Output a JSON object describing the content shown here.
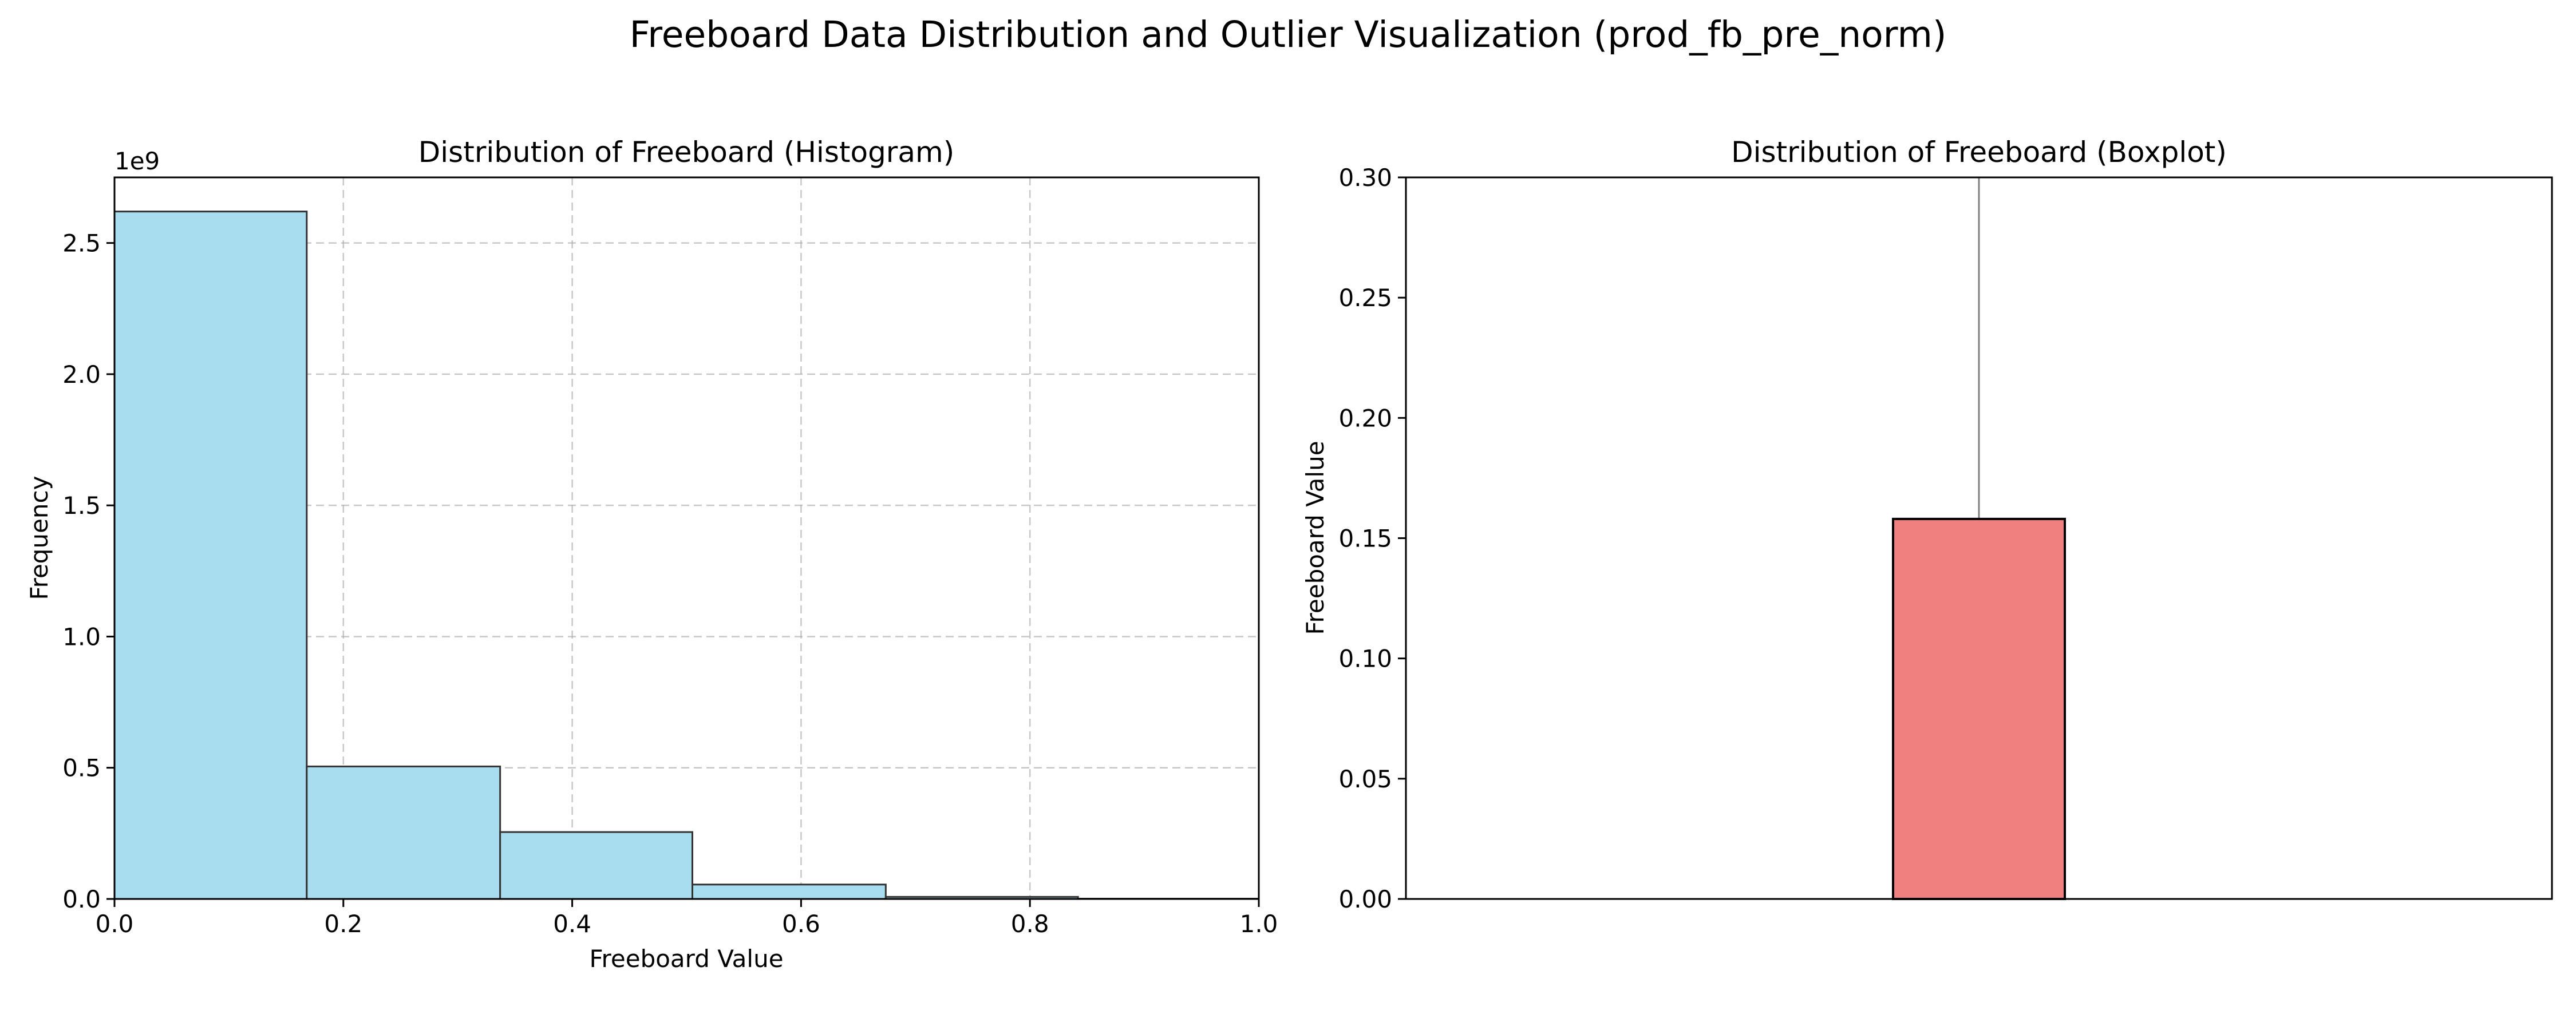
{
  "figure": {
    "suptitle": "Freeboard Data Distribution and Outlier Visualization (prod_fb_pre_norm)"
  },
  "chart_data": [
    {
      "type": "bar",
      "subtype": "histogram",
      "title": "Distribution of Freeboard (Histogram)",
      "xlabel": "Freeboard Value",
      "ylabel": "Frequency",
      "y_offset_label": "1e9",
      "y_scale": 1000000000,
      "xlim": [
        0,
        1
      ],
      "ylim": [
        0,
        2750000000
      ],
      "x_ticks": [
        0.0,
        0.2,
        0.4,
        0.6,
        0.8,
        1.0
      ],
      "x_tick_labels": [
        "0.0",
        "0.2",
        "0.4",
        "0.6",
        "0.8",
        "1.0"
      ],
      "y_ticks": [
        0,
        500000000,
        1000000000,
        1500000000,
        2000000000,
        2500000000
      ],
      "y_tick_labels": [
        "0.0",
        "0.5",
        "1.0",
        "1.5",
        "2.0",
        "2.5"
      ],
      "grid": true,
      "bar_color": "#a8dcef",
      "edge_color": "#333333",
      "bins": [
        {
          "x0": 0.0,
          "x1": 0.168,
          "count": 2620000000
        },
        {
          "x0": 0.168,
          "x1": 0.337,
          "count": 505000000
        },
        {
          "x0": 0.337,
          "x1": 0.505,
          "count": 255000000
        },
        {
          "x0": 0.505,
          "x1": 0.674,
          "count": 55000000
        },
        {
          "x0": 0.674,
          "x1": 0.842,
          "count": 8000000
        },
        {
          "x0": 0.842,
          "x1": 1.0,
          "count": 1000000
        }
      ]
    },
    {
      "type": "boxplot",
      "title": "Distribution of Freeboard (Boxplot)",
      "xlabel": "",
      "ylabel": "Freeboard Value",
      "ylim": [
        0,
        0.3
      ],
      "y_ticks": [
        0.0,
        0.05,
        0.1,
        0.15,
        0.2,
        0.25,
        0.3
      ],
      "y_tick_labels": [
        "0.00",
        "0.05",
        "0.10",
        "0.15",
        "0.20",
        "0.25",
        "0.30"
      ],
      "grid": false,
      "box_color": "#f08080",
      "whisker_color": "#808080",
      "box": {
        "q1": 0.0,
        "median": 0.0,
        "q3": 0.158,
        "whisker_low": 0.0,
        "whisker_high": 0.3
      }
    }
  ]
}
